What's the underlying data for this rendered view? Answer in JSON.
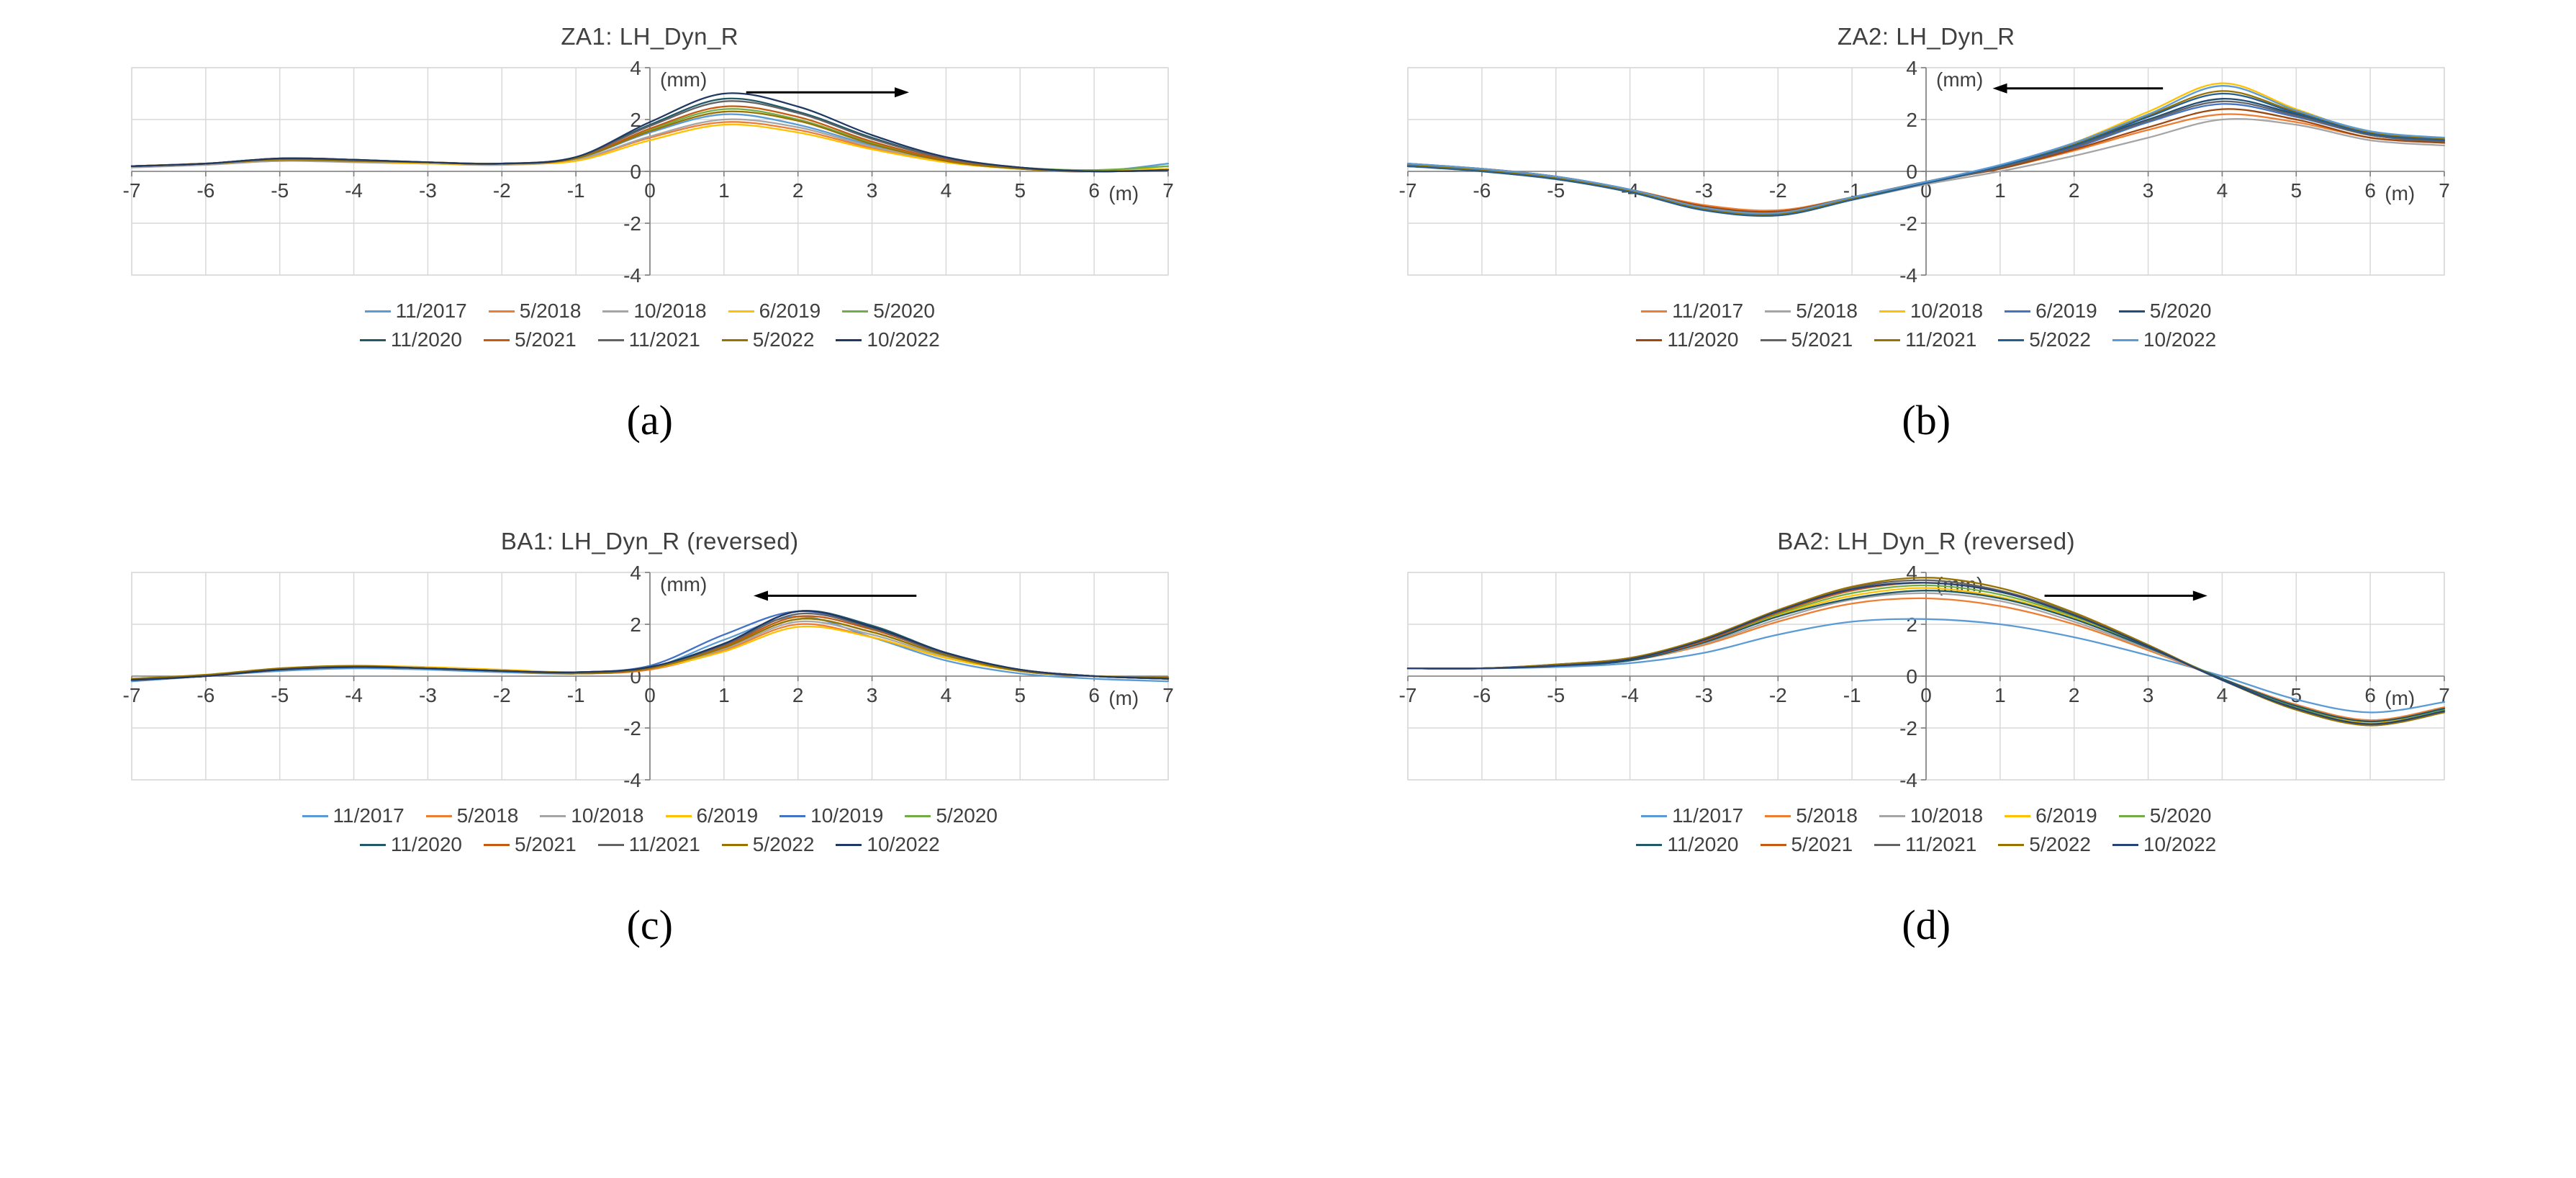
{
  "figure": {
    "background": "#ffffff",
    "grid_color": "#d9d9d9",
    "axis_color": "#7f7f7f",
    "text_color": "#404040"
  },
  "chart_data": [
    {
      "type": "line",
      "title": "ZA1: LH_Dyn_R",
      "caption": "(a)",
      "y_unit": "(mm)",
      "x_unit": "(m)",
      "xlim": [
        -7,
        7
      ],
      "ylim": [
        -4,
        4
      ],
      "x_ticks": [
        -7,
        -6,
        -5,
        -4,
        -3,
        -2,
        -1,
        0,
        1,
        2,
        3,
        4,
        5,
        6,
        7
      ],
      "y_ticks": [
        4,
        2,
        0,
        -2,
        -4
      ],
      "grid": true,
      "legend_position": "bottom",
      "arrow": {
        "y": 3.05,
        "x_from": 1.3,
        "x_to": 3.5,
        "direction": "right"
      },
      "x": [
        -7,
        -6,
        -5,
        -4,
        -3,
        -2,
        -1,
        0,
        1,
        2,
        3,
        4,
        5,
        6,
        7
      ],
      "series": [
        {
          "name": "11/2017",
          "color": "#5B9BD5",
          "values": [
            0.2,
            0.3,
            0.45,
            0.4,
            0.35,
            0.3,
            0.5,
            1.5,
            2.2,
            1.8,
            1.0,
            0.4,
            0.1,
            0.0,
            0.3
          ]
        },
        {
          "name": "5/2018",
          "color": "#ED7D31",
          "values": [
            0.2,
            0.3,
            0.4,
            0.4,
            0.3,
            0.3,
            0.45,
            1.3,
            1.9,
            1.6,
            0.9,
            0.35,
            0.1,
            0.0,
            0.1
          ]
        },
        {
          "name": "10/2018",
          "color": "#A5A5A5",
          "values": [
            0.15,
            0.25,
            0.4,
            0.35,
            0.3,
            0.25,
            0.45,
            1.35,
            2.0,
            1.7,
            0.95,
            0.4,
            0.1,
            0.0,
            0.05
          ]
        },
        {
          "name": "6/2019",
          "color": "#FFC000",
          "values": [
            0.2,
            0.3,
            0.45,
            0.4,
            0.3,
            0.3,
            0.4,
            1.2,
            1.8,
            1.5,
            0.85,
            0.35,
            0.1,
            0.05,
            0.1
          ]
        },
        {
          "name": "5/2020",
          "color": "#70AD47",
          "values": [
            0.2,
            0.3,
            0.45,
            0.4,
            0.35,
            0.3,
            0.5,
            1.6,
            2.4,
            2.0,
            1.1,
            0.45,
            0.15,
            0.05,
            0.2
          ]
        },
        {
          "name": "11/2020",
          "color": "#215968",
          "values": [
            0.2,
            0.3,
            0.5,
            0.45,
            0.35,
            0.3,
            0.55,
            1.8,
            2.8,
            2.3,
            1.3,
            0.5,
            0.15,
            0.0,
            0.05
          ]
        },
        {
          "name": "5/2021",
          "color": "#C55A11",
          "values": [
            0.2,
            0.3,
            0.45,
            0.4,
            0.35,
            0.3,
            0.5,
            1.65,
            2.5,
            2.1,
            1.15,
            0.45,
            0.1,
            0.0,
            0.05
          ]
        },
        {
          "name": "11/2021",
          "color": "#636363",
          "values": [
            0.2,
            0.3,
            0.5,
            0.45,
            0.35,
            0.3,
            0.55,
            1.75,
            2.7,
            2.25,
            1.25,
            0.5,
            0.15,
            0.0,
            0.05
          ]
        },
        {
          "name": "5/2022",
          "color": "#997300",
          "values": [
            0.2,
            0.3,
            0.45,
            0.4,
            0.35,
            0.3,
            0.5,
            1.55,
            2.3,
            1.95,
            1.05,
            0.4,
            0.1,
            0.0,
            0.05
          ]
        },
        {
          "name": "10/2022",
          "color": "#203864",
          "values": [
            0.2,
            0.3,
            0.5,
            0.45,
            0.35,
            0.3,
            0.55,
            1.9,
            3.0,
            2.5,
            1.4,
            0.55,
            0.15,
            0.0,
            0.05
          ]
        }
      ]
    },
    {
      "type": "line",
      "title": "ZA2: LH_Dyn_R",
      "caption": "(b)",
      "y_unit": "(mm)",
      "x_unit": "(m)",
      "xlim": [
        -7,
        7
      ],
      "ylim": [
        -4,
        4
      ],
      "x_ticks": [
        -7,
        -6,
        -5,
        -4,
        -3,
        -2,
        -1,
        0,
        1,
        2,
        3,
        4,
        5,
        6,
        7
      ],
      "y_ticks": [
        4,
        2,
        0,
        -2,
        -4
      ],
      "grid": true,
      "legend_position": "bottom",
      "arrow": {
        "y": 3.2,
        "x_from": 3.2,
        "x_to": 0.9,
        "direction": "left"
      },
      "x": [
        -7,
        -6,
        -5,
        -4,
        -3,
        -2,
        -1,
        0,
        1,
        2,
        3,
        4,
        5,
        6,
        7
      ],
      "series": [
        {
          "name": "11/2017",
          "color": "#ED7D31",
          "values": [
            0.3,
            0.1,
            -0.2,
            -0.7,
            -1.3,
            -1.5,
            -1.0,
            -0.4,
            0.1,
            0.8,
            1.6,
            2.2,
            1.9,
            1.3,
            1.1
          ]
        },
        {
          "name": "5/2018",
          "color": "#A5A5A5",
          "values": [
            0.2,
            0.05,
            -0.25,
            -0.8,
            -1.4,
            -1.6,
            -1.1,
            -0.5,
            0.0,
            0.6,
            1.3,
            2.0,
            1.8,
            1.2,
            1.0
          ]
        },
        {
          "name": "10/2018",
          "color": "#FFC000",
          "values": [
            0.2,
            0.0,
            -0.3,
            -0.8,
            -1.5,
            -1.7,
            -1.1,
            -0.4,
            0.2,
            1.1,
            2.3,
            3.4,
            2.4,
            1.5,
            1.3
          ]
        },
        {
          "name": "6/2019",
          "color": "#4472C4",
          "values": [
            0.3,
            0.1,
            -0.2,
            -0.7,
            -1.4,
            -1.6,
            -1.0,
            -0.4,
            0.15,
            0.9,
            1.9,
            2.6,
            2.1,
            1.4,
            1.1
          ]
        },
        {
          "name": "5/2020",
          "color": "#1F4E79",
          "values": [
            0.2,
            0.05,
            -0.25,
            -0.75,
            -1.45,
            -1.65,
            -1.05,
            -0.45,
            0.15,
            1.0,
            2.0,
            2.8,
            2.2,
            1.4,
            1.2
          ]
        },
        {
          "name": "11/2020",
          "color": "#9E480E",
          "values": [
            0.25,
            0.1,
            -0.2,
            -0.7,
            -1.35,
            -1.55,
            -1.0,
            -0.4,
            0.1,
            0.85,
            1.7,
            2.4,
            2.0,
            1.3,
            1.1
          ]
        },
        {
          "name": "5/2021",
          "color": "#636363",
          "values": [
            0.2,
            0.05,
            -0.25,
            -0.75,
            -1.4,
            -1.6,
            -1.05,
            -0.45,
            0.15,
            0.95,
            1.95,
            2.7,
            2.15,
            1.4,
            1.15
          ]
        },
        {
          "name": "11/2021",
          "color": "#997300",
          "values": [
            0.25,
            0.05,
            -0.25,
            -0.75,
            -1.45,
            -1.65,
            -1.05,
            -0.4,
            0.2,
            1.05,
            2.15,
            3.1,
            2.3,
            1.5,
            1.25
          ]
        },
        {
          "name": "5/2022",
          "color": "#255E91",
          "values": [
            0.2,
            0.0,
            -0.3,
            -0.8,
            -1.5,
            -1.7,
            -1.1,
            -0.45,
            0.2,
            1.0,
            2.1,
            3.0,
            2.25,
            1.45,
            1.2
          ]
        },
        {
          "name": "10/2022",
          "color": "#5B9BD5",
          "values": [
            0.3,
            0.1,
            -0.2,
            -0.7,
            -1.4,
            -1.6,
            -1.0,
            -0.4,
            0.25,
            1.1,
            2.2,
            3.3,
            2.35,
            1.55,
            1.3
          ]
        }
      ]
    },
    {
      "type": "line",
      "title": "BA1: LH_Dyn_R (reversed)",
      "caption": "(c)",
      "y_unit": "(mm)",
      "x_unit": "(m)",
      "xlim": [
        -7,
        7
      ],
      "ylim": [
        -4,
        4
      ],
      "x_ticks": [
        -7,
        -6,
        -5,
        -4,
        -3,
        -2,
        -1,
        0,
        1,
        2,
        3,
        4,
        5,
        6,
        7
      ],
      "y_ticks": [
        4,
        2,
        0,
        -2,
        -4
      ],
      "grid": true,
      "legend_position": "bottom",
      "arrow": {
        "y": 3.1,
        "x_from": 3.6,
        "x_to": 1.4,
        "direction": "left"
      },
      "x": [
        -7,
        -6,
        -5,
        -4,
        -3,
        -2,
        -1,
        0,
        1,
        2,
        3,
        4,
        5,
        6,
        7
      ],
      "series": [
        {
          "name": "11/2017",
          "color": "#5B9BD5",
          "values": [
            -0.2,
            0.0,
            0.2,
            0.3,
            0.25,
            0.15,
            0.1,
            0.3,
            1.4,
            2.3,
            1.5,
            0.6,
            0.1,
            -0.1,
            -0.2
          ]
        },
        {
          "name": "5/2018",
          "color": "#ED7D31",
          "values": [
            -0.15,
            0.0,
            0.25,
            0.35,
            0.3,
            0.2,
            0.1,
            0.25,
            1.0,
            2.0,
            1.5,
            0.7,
            0.2,
            0.0,
            -0.1
          ]
        },
        {
          "name": "10/2018",
          "color": "#A5A5A5",
          "values": [
            -0.15,
            0.0,
            0.25,
            0.35,
            0.3,
            0.2,
            0.1,
            0.3,
            1.05,
            2.1,
            1.6,
            0.75,
            0.2,
            0.0,
            -0.1
          ]
        },
        {
          "name": "6/2019",
          "color": "#FFC000",
          "values": [
            -0.1,
            0.05,
            0.3,
            0.4,
            0.35,
            0.25,
            0.15,
            0.3,
            0.95,
            1.9,
            1.5,
            0.7,
            0.2,
            0.0,
            -0.05
          ]
        },
        {
          "name": "10/2019",
          "color": "#4472C4",
          "values": [
            -0.15,
            0.0,
            0.25,
            0.35,
            0.3,
            0.2,
            0.15,
            0.4,
            1.6,
            2.5,
            1.9,
            0.9,
            0.25,
            0.0,
            -0.1
          ]
        },
        {
          "name": "5/2020",
          "color": "#70AD47",
          "values": [
            -0.15,
            0.0,
            0.25,
            0.35,
            0.3,
            0.2,
            0.1,
            0.3,
            1.1,
            2.2,
            1.7,
            0.8,
            0.2,
            0.0,
            -0.1
          ]
        },
        {
          "name": "11/2020",
          "color": "#215968",
          "values": [
            -0.15,
            0.0,
            0.25,
            0.35,
            0.3,
            0.2,
            0.15,
            0.35,
            1.25,
            2.5,
            1.95,
            0.9,
            0.25,
            0.0,
            -0.1
          ]
        },
        {
          "name": "5/2021",
          "color": "#C55A11",
          "values": [
            -0.15,
            0.0,
            0.25,
            0.35,
            0.3,
            0.2,
            0.1,
            0.3,
            1.15,
            2.3,
            1.8,
            0.85,
            0.2,
            0.0,
            -0.1
          ]
        },
        {
          "name": "11/2021",
          "color": "#636363",
          "values": [
            -0.15,
            0.0,
            0.25,
            0.35,
            0.3,
            0.2,
            0.15,
            0.35,
            1.2,
            2.4,
            1.85,
            0.85,
            0.25,
            0.0,
            -0.1
          ]
        },
        {
          "name": "5/2022",
          "color": "#997300",
          "values": [
            -0.1,
            0.05,
            0.3,
            0.4,
            0.3,
            0.2,
            0.1,
            0.3,
            1.1,
            2.2,
            1.7,
            0.8,
            0.2,
            0.0,
            -0.05
          ]
        },
        {
          "name": "10/2022",
          "color": "#203864",
          "values": [
            -0.15,
            0.0,
            0.25,
            0.35,
            0.3,
            0.2,
            0.15,
            0.35,
            1.25,
            2.5,
            1.9,
            0.9,
            0.25,
            0.0,
            -0.1
          ]
        }
      ]
    },
    {
      "type": "line",
      "title": "BA2: LH_Dyn_R (reversed)",
      "caption": "(d)",
      "y_unit": "(mm)",
      "x_unit": "(m)",
      "xlim": [
        -7,
        7
      ],
      "ylim": [
        -4,
        4
      ],
      "x_ticks": [
        -7,
        -6,
        -5,
        -4,
        -3,
        -2,
        -1,
        0,
        1,
        2,
        3,
        4,
        5,
        6,
        7
      ],
      "y_ticks": [
        4,
        2,
        0,
        -2,
        -4
      ],
      "grid": true,
      "legend_position": "bottom",
      "arrow": {
        "y": 3.1,
        "x_from": 1.6,
        "x_to": 3.8,
        "direction": "right"
      },
      "x": [
        -7,
        -6,
        -5,
        -4,
        -3,
        -2,
        -1,
        0,
        1,
        2,
        3,
        4,
        5,
        6,
        7
      ],
      "series": [
        {
          "name": "11/2017",
          "color": "#5B9BD5",
          "values": [
            0.3,
            0.3,
            0.35,
            0.5,
            0.9,
            1.6,
            2.1,
            2.2,
            2.0,
            1.5,
            0.8,
            0.0,
            -0.9,
            -1.4,
            -1.0
          ]
        },
        {
          "name": "5/2018",
          "color": "#ED7D31",
          "values": [
            0.3,
            0.3,
            0.4,
            0.6,
            1.2,
            2.1,
            2.8,
            3.0,
            2.7,
            2.0,
            1.0,
            -0.1,
            -1.1,
            -1.7,
            -1.2
          ]
        },
        {
          "name": "10/2018",
          "color": "#A5A5A5",
          "values": [
            0.3,
            0.3,
            0.4,
            0.6,
            1.25,
            2.2,
            2.95,
            3.2,
            2.9,
            2.1,
            1.05,
            -0.1,
            -1.15,
            -1.75,
            -1.25
          ]
        },
        {
          "name": "6/2019",
          "color": "#FFC000",
          "values": [
            0.3,
            0.3,
            0.4,
            0.65,
            1.3,
            2.35,
            3.1,
            3.4,
            3.05,
            2.25,
            1.1,
            -0.1,
            -1.2,
            -1.8,
            -1.3
          ]
        },
        {
          "name": "5/2020",
          "color": "#70AD47",
          "values": [
            0.3,
            0.3,
            0.4,
            0.65,
            1.35,
            2.4,
            3.2,
            3.5,
            3.15,
            2.3,
            1.15,
            -0.1,
            -1.2,
            -1.85,
            -1.3
          ]
        },
        {
          "name": "11/2020",
          "color": "#215968",
          "values": [
            0.3,
            0.3,
            0.4,
            0.6,
            1.3,
            2.3,
            3.0,
            3.3,
            3.0,
            2.2,
            1.1,
            -0.1,
            -1.15,
            -1.75,
            -1.25
          ]
        },
        {
          "name": "5/2021",
          "color": "#C55A11",
          "values": [
            0.3,
            0.3,
            0.4,
            0.65,
            1.35,
            2.45,
            3.3,
            3.6,
            3.25,
            2.35,
            1.15,
            -0.15,
            -1.25,
            -1.85,
            -1.35
          ]
        },
        {
          "name": "11/2021",
          "color": "#636363",
          "values": [
            0.3,
            0.3,
            0.45,
            0.7,
            1.4,
            2.5,
            3.4,
            3.7,
            3.3,
            2.4,
            1.2,
            -0.15,
            -1.25,
            -1.9,
            -1.35
          ]
        },
        {
          "name": "5/2022",
          "color": "#997300",
          "values": [
            0.3,
            0.3,
            0.45,
            0.7,
            1.45,
            2.55,
            3.45,
            3.8,
            3.4,
            2.45,
            1.2,
            -0.15,
            -1.3,
            -1.9,
            -1.4
          ]
        },
        {
          "name": "10/2022",
          "color": "#264478",
          "values": [
            0.3,
            0.3,
            0.4,
            0.65,
            1.4,
            2.5,
            3.35,
            3.6,
            3.25,
            2.35,
            1.15,
            -0.15,
            -1.25,
            -1.85,
            -1.35
          ]
        }
      ]
    }
  ]
}
